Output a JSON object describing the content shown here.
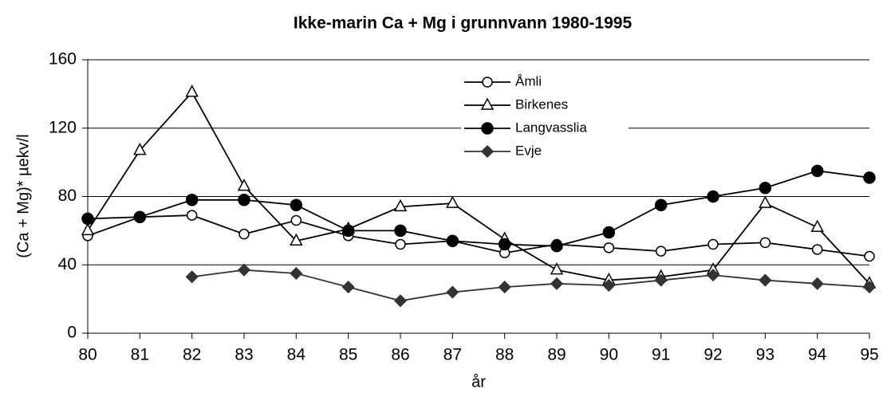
{
  "chart_data": {
    "type": "line",
    "title": "Ikke-marin Ca + Mg i grunnvann 1980-1995",
    "x_label": "år",
    "y_label": "(Ca + Mg)* µekv/l",
    "categories": [
      "80",
      "81",
      "82",
      "83",
      "84",
      "85",
      "86",
      "87",
      "88",
      "89",
      "90",
      "91",
      "92",
      "93",
      "94",
      "95"
    ],
    "series": [
      {
        "name": "Åmli",
        "color": "#000000",
        "marker": "circle-open",
        "values": [
          57,
          68,
          69,
          58,
          66,
          57,
          52,
          54,
          47,
          52,
          50,
          48,
          52,
          53,
          49,
          45
        ]
      },
      {
        "name": "Birkenes",
        "color": "#000000",
        "marker": "triangle-open",
        "values": [
          60,
          107,
          141,
          86,
          54,
          61,
          74,
          76,
          55,
          37,
          31,
          33,
          37,
          76,
          62,
          29
        ]
      },
      {
        "name": "Langvasslia",
        "color": "#000000",
        "marker": "circle-filled",
        "values": [
          67,
          68,
          78,
          78,
          75,
          60,
          60,
          54,
          52,
          51,
          59,
          75,
          80,
          85,
          95,
          91
        ]
      },
      {
        "name": "Evje",
        "color": "#333333",
        "marker": "diamond-filled",
        "values": [
          null,
          null,
          33,
          37,
          35,
          27,
          19,
          24,
          27,
          29,
          28,
          31,
          34,
          31,
          29,
          27
        ]
      }
    ],
    "ylim": [
      0,
      160
    ],
    "yticks": [
      0,
      40,
      80,
      120,
      160
    ],
    "grid": true,
    "legend": "upper-center"
  }
}
